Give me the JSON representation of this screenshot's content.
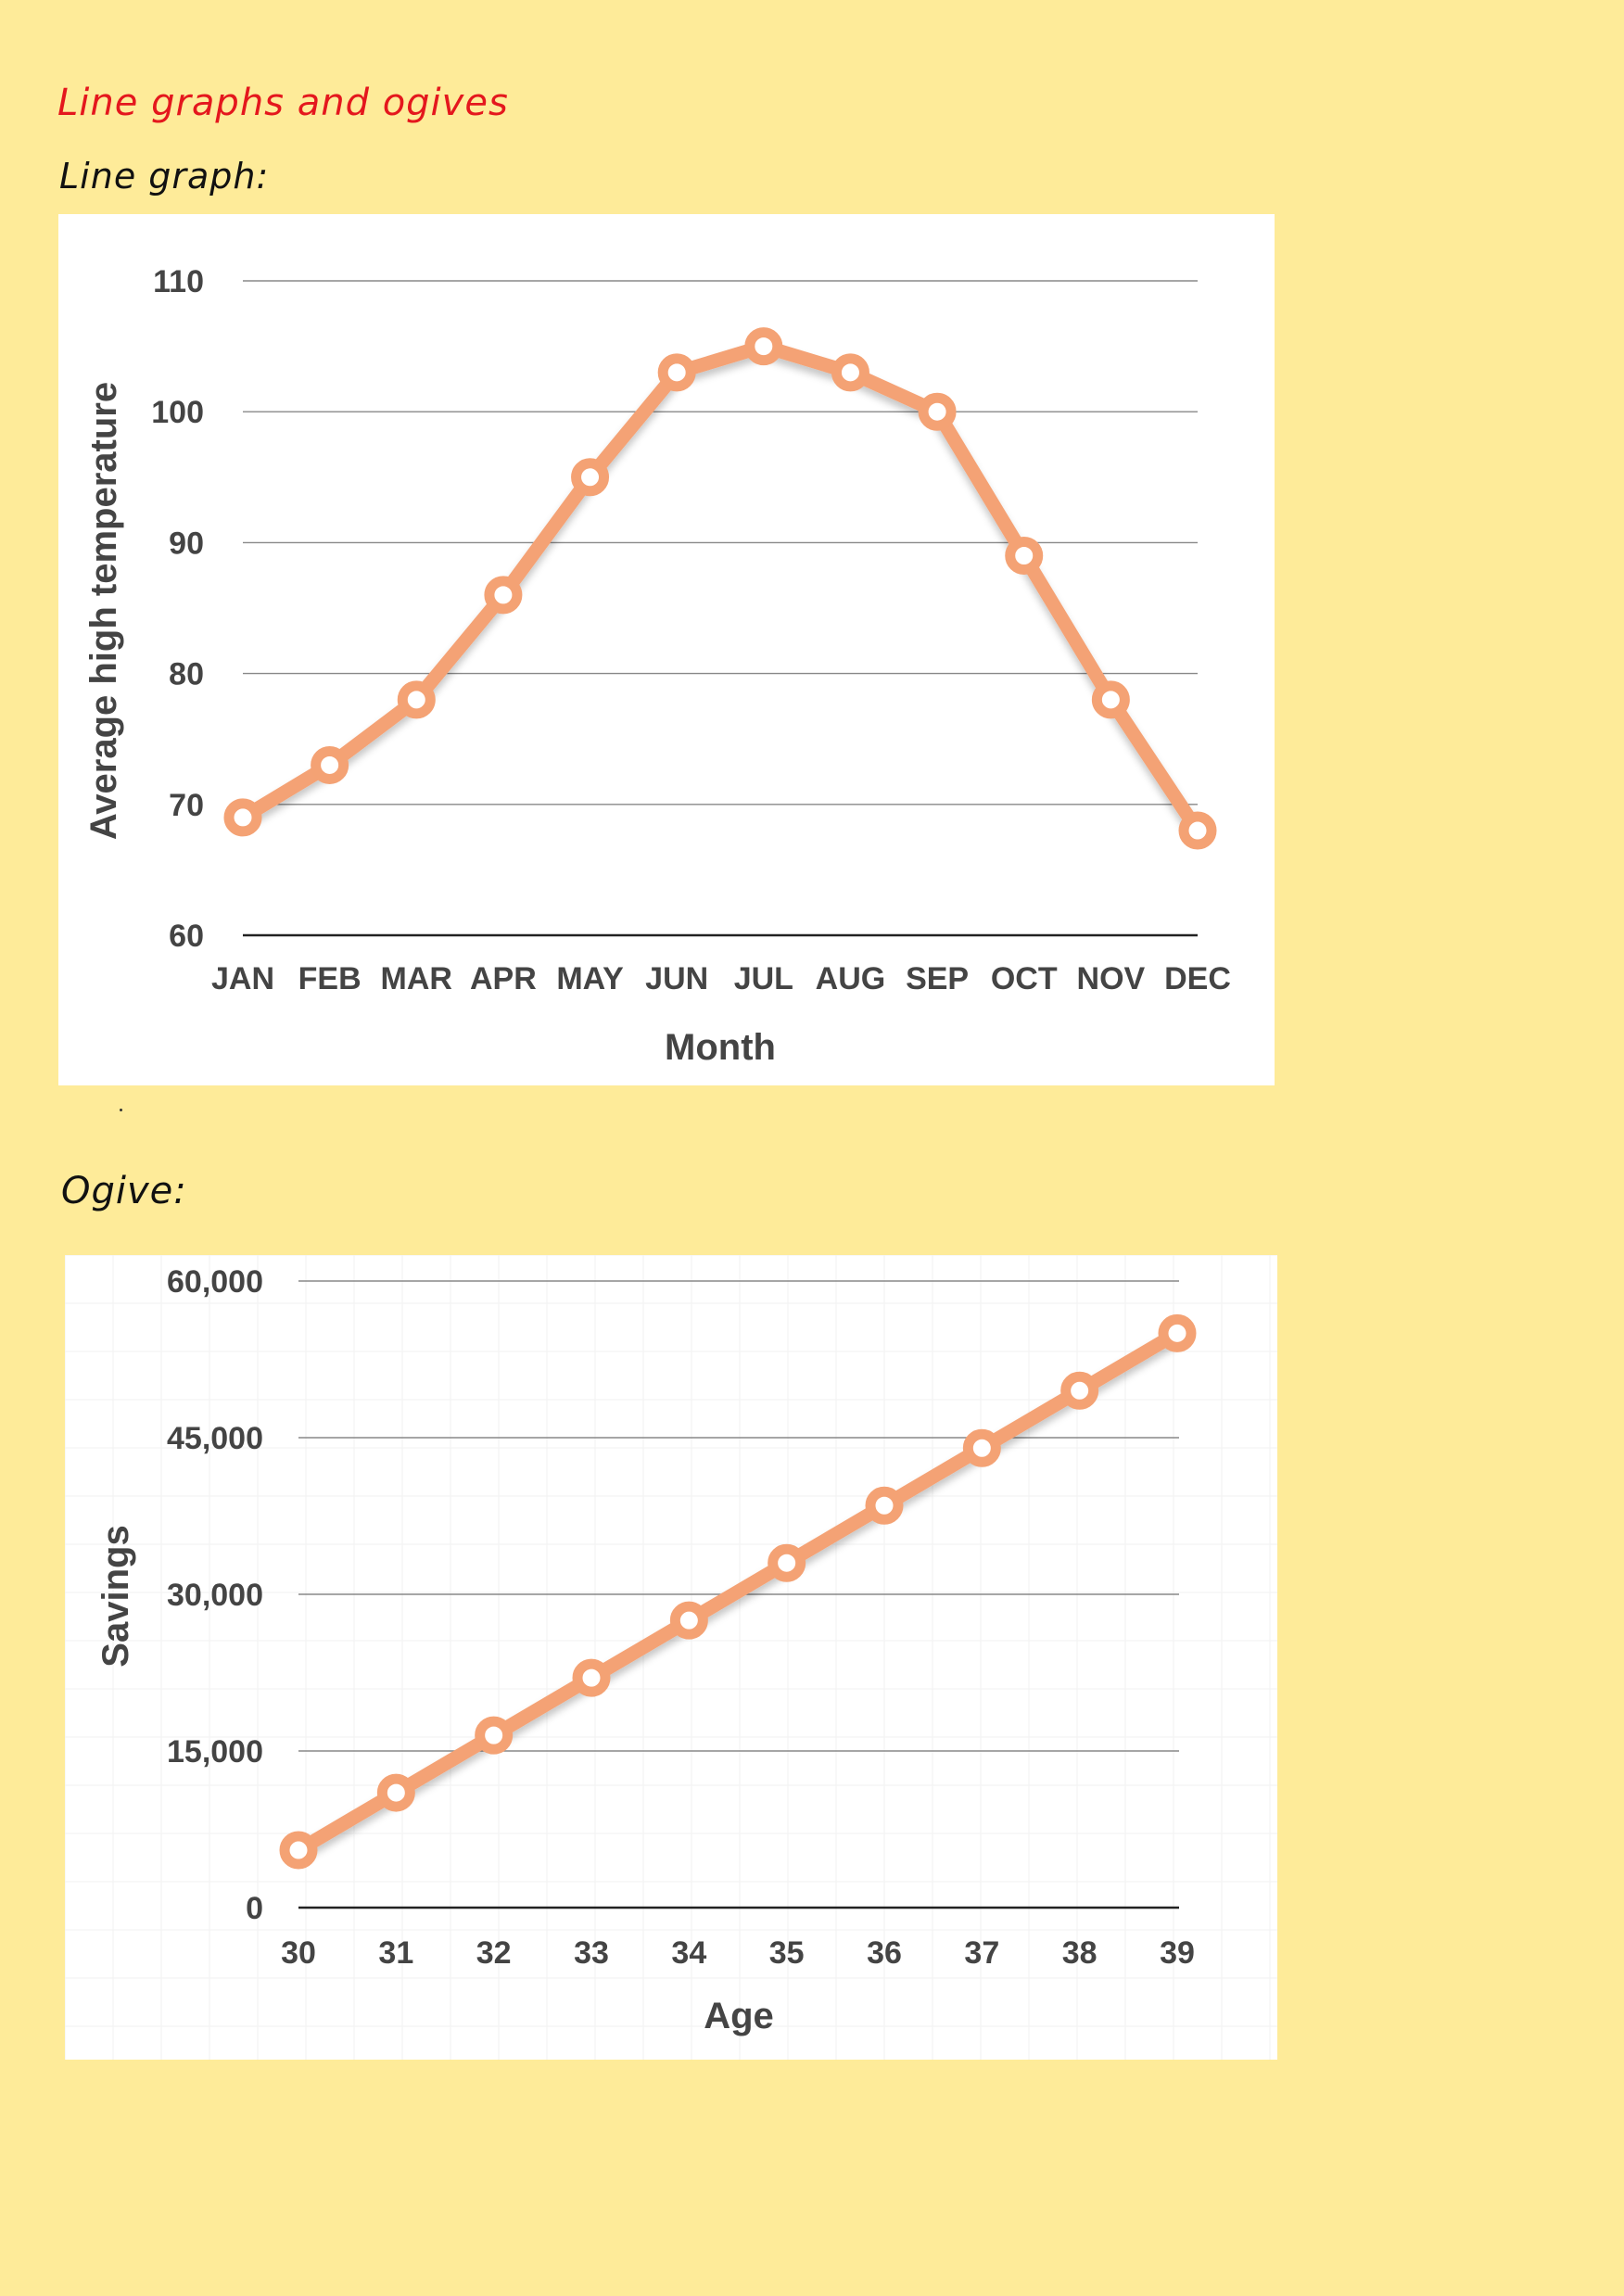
{
  "headings": {
    "page_title": "Line graphs and ogives",
    "line_graph": "Line graph:",
    "ogive": "Ogive:"
  },
  "colors": {
    "background": "#feeb99",
    "title": "#e4171d",
    "series": "#f4a274",
    "grid": "#888888",
    "axis_text": "#444444"
  },
  "chart_data": [
    {
      "type": "line",
      "xlabel": "Month",
      "ylabel": "Average high temperature",
      "categories": [
        "JAN",
        "FEB",
        "MAR",
        "APR",
        "MAY",
        "JUN",
        "JUL",
        "AUG",
        "SEP",
        "OCT",
        "NOV",
        "DEC"
      ],
      "values": [
        69,
        73,
        78,
        86,
        95,
        103,
        105,
        103,
        100,
        89,
        78,
        68
      ],
      "ylim": [
        60,
        110
      ],
      "yticks": [
        "60",
        "70",
        "80",
        "90",
        "100",
        "110"
      ],
      "grid": true
    },
    {
      "type": "line",
      "xlabel": "Age",
      "ylabel": "Savings",
      "categories": [
        "30",
        "31",
        "32",
        "33",
        "34",
        "35",
        "36",
        "37",
        "38",
        "39"
      ],
      "values": [
        5500,
        11000,
        16500,
        22000,
        27500,
        33000,
        38500,
        44000,
        49500,
        55000
      ],
      "ylim": [
        0,
        60000
      ],
      "yticks": [
        "0",
        "15,000",
        "30,000",
        "45,000",
        "60,000"
      ],
      "grid": true
    }
  ]
}
